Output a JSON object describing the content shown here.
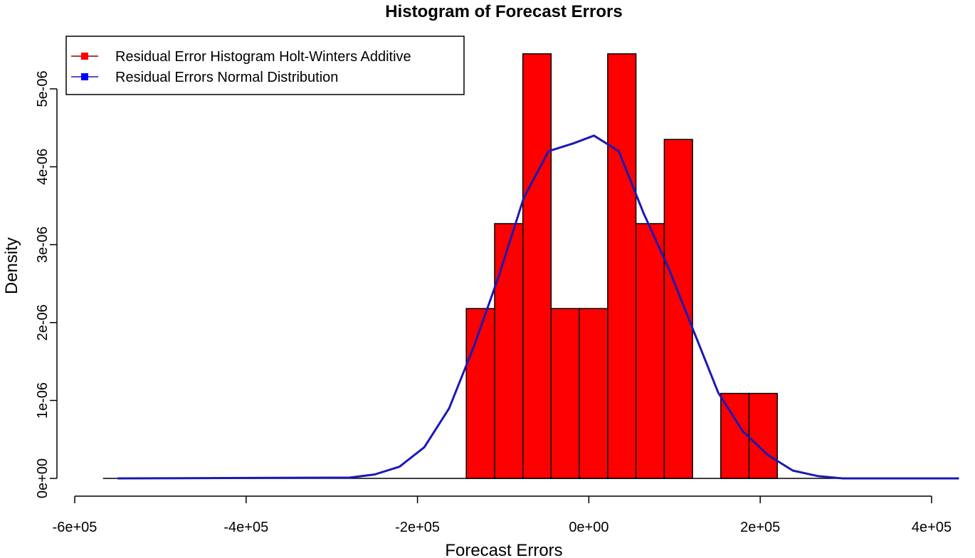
{
  "chart_data": {
    "type": "bar",
    "title": "Histogram of Forecast Errors",
    "xlabel": "Forecast Errors",
    "ylabel": "Density",
    "xlim": [
      -600000,
      400000
    ],
    "ylim": [
      0,
      5.5e-06
    ],
    "x_ticks": [
      -600000,
      -400000,
      -200000,
      0,
      200000,
      400000
    ],
    "x_tick_labels": [
      "-6e+05",
      "-4e+05",
      "-2e+05",
      "0e+00",
      "2e+05",
      "4e+05"
    ],
    "y_ticks": [
      0,
      1e-06,
      2e-06,
      3e-06,
      4e-06,
      5e-06
    ],
    "y_tick_labels": [
      "0e+00",
      "1e-06",
      "2e-06",
      "3e-06",
      "4e-06",
      "5e-06"
    ],
    "grid": false,
    "legend_position": "top-left",
    "colors": {
      "histogram": "#ff0000",
      "curve": "#1a1ab4",
      "border": "#000000"
    },
    "histogram": {
      "name": "Residual Error Histogram Holt-Winters Additive",
      "bins": [
        {
          "x0": -143000,
          "x1": -110000,
          "density": 2.18e-06
        },
        {
          "x0": -110000,
          "x1": -77000,
          "density": 3.27e-06
        },
        {
          "x0": -77000,
          "x1": -44000,
          "density": 5.45e-06
        },
        {
          "x0": -44000,
          "x1": -11000,
          "density": 2.18e-06
        },
        {
          "x0": -11000,
          "x1": 22000,
          "density": 2.18e-06
        },
        {
          "x0": 22000,
          "x1": 55000,
          "density": 5.45e-06
        },
        {
          "x0": 55000,
          "x1": 88000,
          "density": 3.27e-06
        },
        {
          "x0": 88000,
          "x1": 121000,
          "density": 4.35e-06
        },
        {
          "x0": 121000,
          "x1": 154000,
          "density": 0
        },
        {
          "x0": 154000,
          "x1": 187000,
          "density": 1.09e-06
        },
        {
          "x0": 187000,
          "x1": 220000,
          "density": 1.09e-06
        }
      ]
    },
    "normal_curve": {
      "name": "Residual Errors Normal Distribution",
      "x": [
        -550000,
        -279000,
        -250000,
        -221000,
        -192000,
        -163000,
        -134000,
        -105000,
        -76000,
        -47000,
        -18000,
        6000,
        35000,
        64000,
        93000,
        122000,
        151000,
        180000,
        209000,
        238000,
        267000,
        296000,
        432000
      ],
      "y": [
        0,
        1e-08,
        5e-08,
        1.5e-07,
        4e-07,
        9e-07,
        1.7e-06,
        2.6e-06,
        3.6e-06,
        4.2e-06,
        4.3e-06,
        4.4e-06,
        4.2e-06,
        3.4e-06,
        2.7e-06,
        1.9e-06,
        1.1e-06,
        6e-07,
        3e-07,
        1e-07,
        3e-08,
        0,
        0
      ]
    },
    "baseline": {
      "x0": -567000,
      "x1": 432000
    }
  }
}
